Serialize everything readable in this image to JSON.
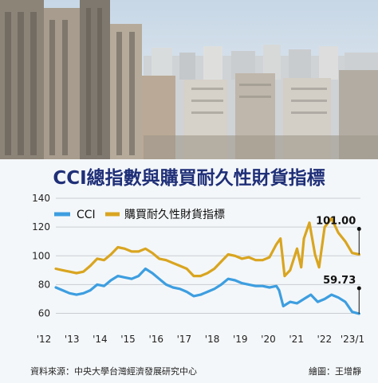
{
  "chart_data": {
    "type": "line",
    "title": "CCI總指數與購買耐久性財貨指標",
    "x_tick_labels": [
      "'12",
      "'13",
      "'14",
      "'15",
      "'16",
      "'17",
      "'18",
      "'19",
      "'20",
      "'21",
      "'22",
      "'23/1"
    ],
    "y_ticks": [
      60,
      80,
      100,
      120,
      140
    ],
    "ylim": [
      52,
      145
    ],
    "xlim": [
      2012.0,
      2023.05
    ],
    "grid": true,
    "legend_position": "top-left",
    "series": [
      {
        "name": "CCI",
        "color": "#3d9ee0",
        "x": [
          2012.0,
          2012.25,
          2012.5,
          2012.75,
          2013.0,
          2013.25,
          2013.5,
          2013.75,
          2014.0,
          2014.25,
          2014.5,
          2014.75,
          2015.0,
          2015.25,
          2015.5,
          2015.75,
          2016.0,
          2016.25,
          2016.5,
          2016.75,
          2017.0,
          2017.25,
          2017.5,
          2017.75,
          2018.0,
          2018.25,
          2018.5,
          2018.75,
          2019.0,
          2019.25,
          2019.5,
          2019.75,
          2020.0,
          2020.1,
          2020.25,
          2020.5,
          2020.75,
          2021.0,
          2021.25,
          2021.5,
          2021.75,
          2022.0,
          2022.25,
          2022.5,
          2022.75,
          2023.0
        ],
        "values": [
          78,
          76,
          74,
          73,
          74,
          76,
          80,
          79,
          83,
          86,
          85,
          84,
          86,
          91,
          88,
          84,
          80,
          78,
          77,
          75,
          72,
          73,
          75,
          77,
          80,
          84,
          83,
          81,
          80,
          79,
          79,
          78,
          79,
          76,
          65,
          68,
          67,
          70,
          73,
          68,
          70,
          73,
          71,
          68,
          61,
          59.73
        ]
      },
      {
        "name": "購買耐久性財貨指標",
        "color": "#d9a520",
        "x": [
          2012.0,
          2012.25,
          2012.5,
          2012.75,
          2013.0,
          2013.25,
          2013.5,
          2013.75,
          2014.0,
          2014.25,
          2014.5,
          2014.75,
          2015.0,
          2015.25,
          2015.5,
          2015.75,
          2016.0,
          2016.25,
          2016.5,
          2016.75,
          2017.0,
          2017.25,
          2017.5,
          2017.75,
          2018.0,
          2018.25,
          2018.5,
          2018.75,
          2019.0,
          2019.25,
          2019.5,
          2019.75,
          2020.0,
          2020.15,
          2020.3,
          2020.5,
          2020.75,
          2020.9,
          2021.0,
          2021.2,
          2021.4,
          2021.55,
          2021.75,
          2022.0,
          2022.25,
          2022.5,
          2022.75,
          2023.0
        ],
        "values": [
          91,
          90,
          89,
          88,
          89,
          93,
          98,
          97,
          101,
          106,
          105,
          103,
          103,
          105,
          102,
          98,
          97,
          95,
          93,
          91,
          86,
          86,
          88,
          91,
          96,
          101,
          100,
          98,
          99,
          97,
          97,
          99,
          108,
          112,
          86,
          90,
          105,
          92,
          112,
          123,
          101,
          92,
          120,
          126,
          116,
          110,
          102,
          101.0
        ]
      }
    ],
    "annotations": [
      {
        "label": "101.00",
        "series": 1
      },
      {
        "label": "59.73",
        "series": 0
      }
    ]
  },
  "footer": {
    "source": "資料來源：中央大學台灣經濟發展研究中心",
    "credit": "繪圖：王增靜"
  },
  "colors": {
    "title": "#1f2f78",
    "panel_bg": "#f4f7f9",
    "grid": "#c9ced3",
    "cci": "#3d9ee0",
    "durable": "#d9a520"
  }
}
